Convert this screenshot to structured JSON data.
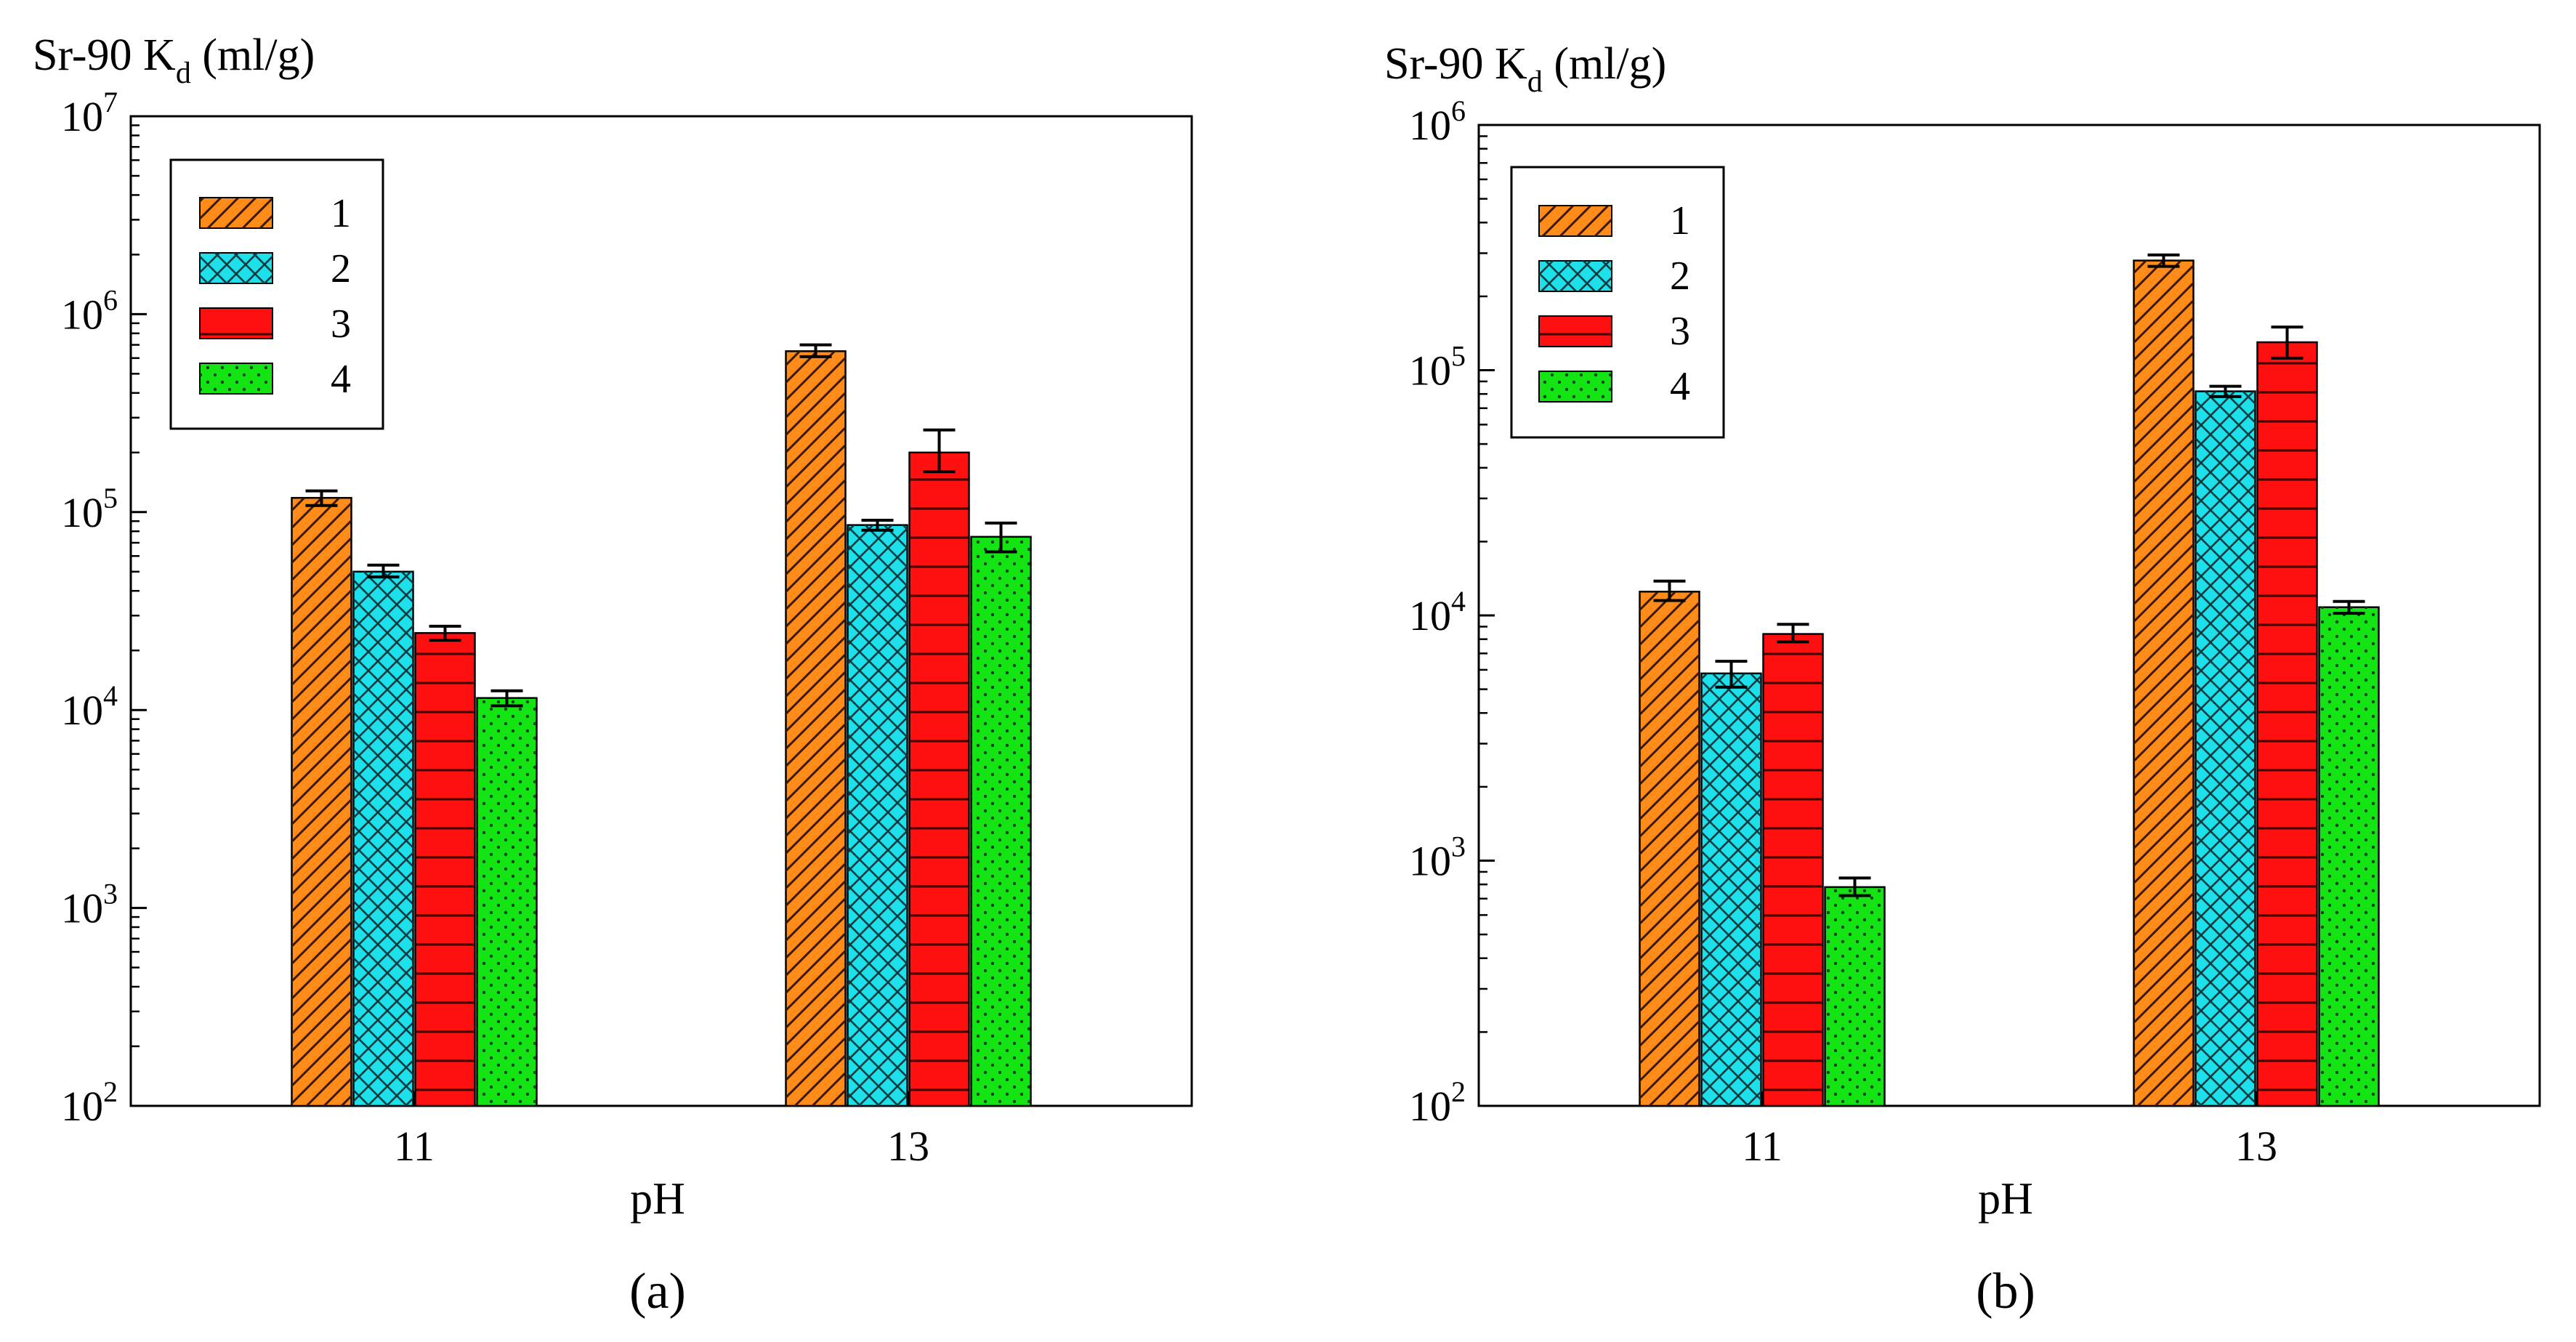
{
  "figure": {
    "panels": [
      "(a)",
      "(b)"
    ]
  },
  "chart_data": [
    {
      "type": "bar",
      "panel_label": "(a)",
      "ylabel_main": "Sr-90 K",
      "ylabel_sub": "d",
      "ylabel_unit": " (ml/g)",
      "xlabel": "pH",
      "categories": [
        "11",
        "13"
      ],
      "yscale": "log",
      "ylim": [
        100,
        10000000
      ],
      "ytick_values": [
        100,
        1000,
        10000,
        100000,
        1000000,
        10000000
      ],
      "ytick_labels": [
        {
          "base": "10",
          "exp": "2"
        },
        {
          "base": "10",
          "exp": "3"
        },
        {
          "base": "10",
          "exp": "4"
        },
        {
          "base": "10",
          "exp": "5"
        },
        {
          "base": "10",
          "exp": "6"
        },
        {
          "base": "10",
          "exp": "7"
        }
      ],
      "legend": {
        "position": "top-left",
        "entries": [
          "1",
          "2",
          "3",
          "4"
        ]
      },
      "series": [
        {
          "name": "1",
          "color": "#ff8c1a",
          "pattern": "diagonal",
          "values": [
            118000,
            650000
          ],
          "err_low": [
            108000,
            610000
          ],
          "err_high": [
            128000,
            700000
          ]
        },
        {
          "name": "2",
          "color": "#1ee0ea",
          "pattern": "crosshatch",
          "values": [
            50000,
            86000
          ],
          "err_low": [
            47000,
            81000
          ],
          "err_high": [
            54000,
            91000
          ]
        },
        {
          "name": "3",
          "color": "#ff1010",
          "pattern": "horizontal",
          "values": [
            24500,
            200000
          ],
          "err_low": [
            22500,
            160000
          ],
          "err_high": [
            26500,
            260000
          ]
        },
        {
          "name": "4",
          "color": "#14e414",
          "pattern": "dots",
          "values": [
            11500,
            75000
          ],
          "err_low": [
            10500,
            63000
          ],
          "err_high": [
            12500,
            88000
          ]
        }
      ]
    },
    {
      "type": "bar",
      "panel_label": "(b)",
      "ylabel_main": "Sr-90 K",
      "ylabel_sub": "d",
      "ylabel_unit": " (ml/g)",
      "xlabel": "pH",
      "categories": [
        "11",
        "13"
      ],
      "yscale": "log",
      "ylim": [
        100,
        1000000
      ],
      "ytick_values": [
        100,
        1000,
        10000,
        100000,
        1000000
      ],
      "ytick_labels": [
        {
          "base": "10",
          "exp": "2"
        },
        {
          "base": "10",
          "exp": "3"
        },
        {
          "base": "10",
          "exp": "4"
        },
        {
          "base": "10",
          "exp": "5"
        },
        {
          "base": "10",
          "exp": "6"
        }
      ],
      "legend": {
        "position": "top-left",
        "entries": [
          "1",
          "2",
          "3",
          "4"
        ]
      },
      "series": [
        {
          "name": "1",
          "color": "#ff8c1a",
          "pattern": "diagonal",
          "values": [
            12500,
            280000
          ],
          "err_low": [
            11500,
            265000
          ],
          "err_high": [
            13800,
            295000
          ]
        },
        {
          "name": "2",
          "color": "#1ee0ea",
          "pattern": "crosshatch",
          "values": [
            5800,
            82000
          ],
          "err_low": [
            5100,
            78000
          ],
          "err_high": [
            6500,
            86000
          ]
        },
        {
          "name": "3",
          "color": "#ff1010",
          "pattern": "horizontal",
          "values": [
            8400,
            130000
          ],
          "err_low": [
            7800,
            112000
          ],
          "err_high": [
            9200,
            150000
          ]
        },
        {
          "name": "4",
          "color": "#14e414",
          "pattern": "dots",
          "values": [
            780,
            10800
          ],
          "err_low": [
            720,
            10200
          ],
          "err_high": [
            850,
            11400
          ]
        }
      ]
    }
  ]
}
